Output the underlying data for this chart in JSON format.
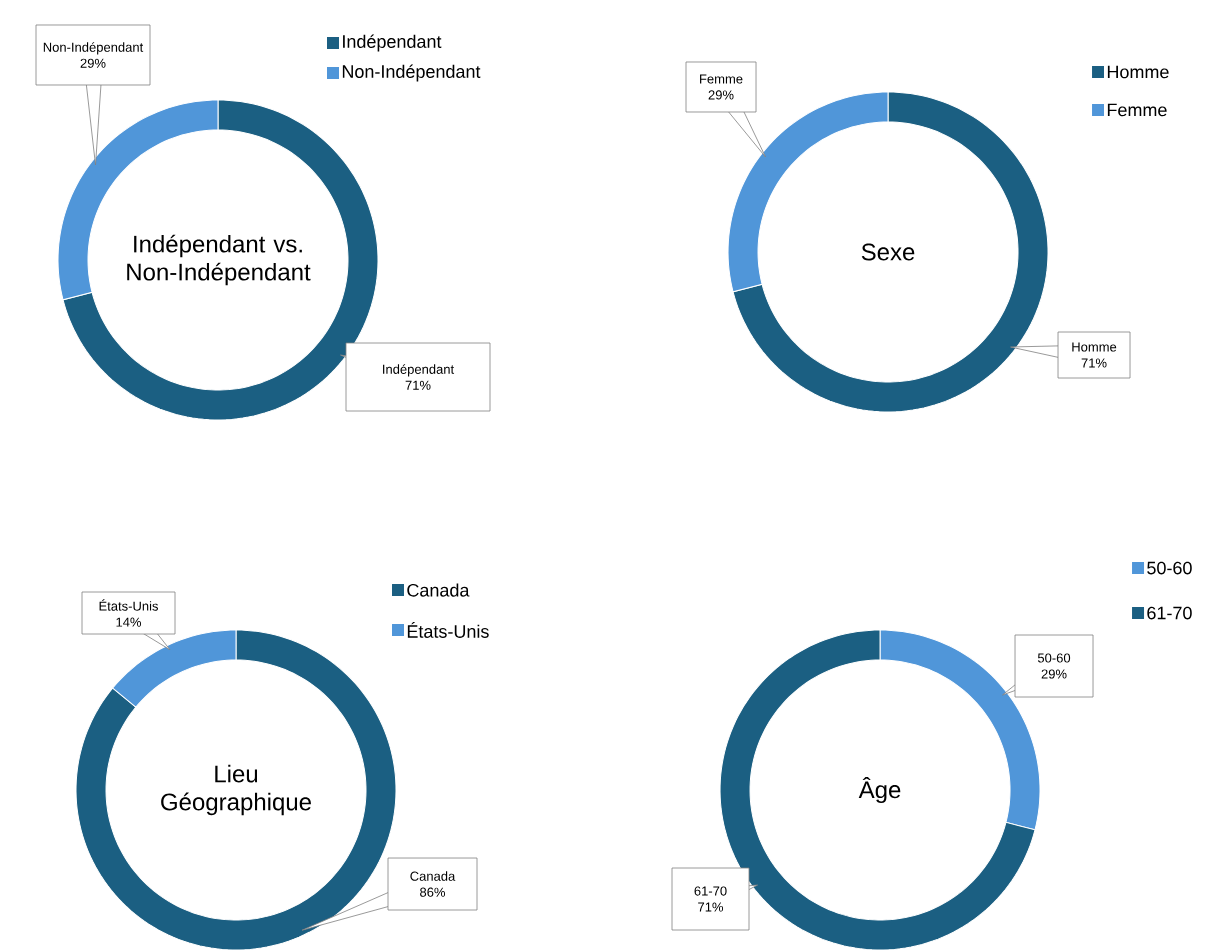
{
  "chart_data": [
    {
      "type": "donut",
      "title": "Indépendant vs. Non-Indépendant",
      "categories": [
        "Indépendant",
        "Non-Indépendant"
      ],
      "values": [
        71,
        29
      ],
      "colors": [
        "#1b5f82",
        "#5096d9"
      ],
      "value_labels": [
        "71%",
        "29%"
      ],
      "legend": "top right"
    },
    {
      "type": "donut",
      "title": "Sexe",
      "categories": [
        "Homme",
        "Femme"
      ],
      "values": [
        71,
        29
      ],
      "colors": [
        "#1b5f82",
        "#5096d9"
      ],
      "value_labels": [
        "71%",
        "29%"
      ],
      "legend": "top right"
    },
    {
      "type": "donut",
      "title": "Lieu Géographique",
      "categories": [
        "Canada",
        "États-Unis"
      ],
      "values": [
        86,
        14
      ],
      "colors": [
        "#1b5f82",
        "#5096d9"
      ],
      "value_labels": [
        "86%",
        "14%"
      ],
      "legend": "top right"
    },
    {
      "type": "donut",
      "title": "Âge",
      "categories": [
        "50-60",
        "61-70"
      ],
      "values": [
        29,
        71
      ],
      "colors": [
        "#5096d9",
        "#1b5f82"
      ],
      "value_labels": [
        "29%",
        "71%"
      ],
      "legend": "top right"
    }
  ]
}
